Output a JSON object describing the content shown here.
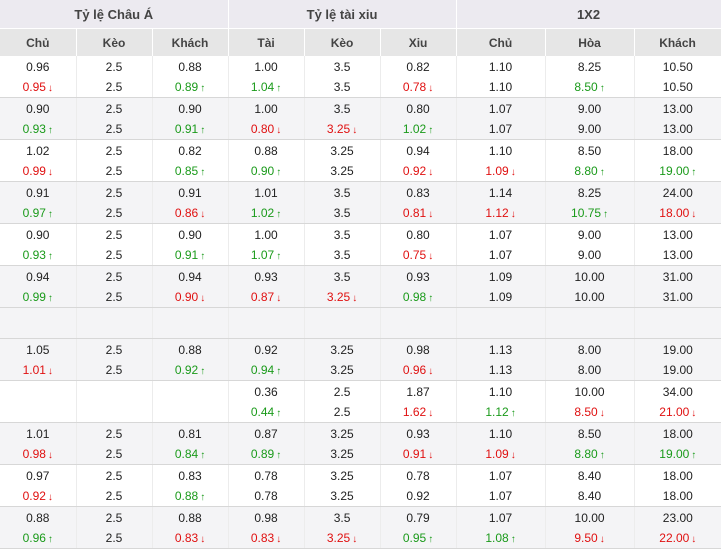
{
  "headers": {
    "groups": [
      "Tỷ lệ Châu Á",
      "Tỷ lệ tài xiu",
      "1X2"
    ],
    "columns": [
      "Chủ",
      "Kèo",
      "Khách",
      "Tài",
      "Kèo",
      "Xiu",
      "Chủ",
      "Hòa",
      "Khách"
    ]
  },
  "colors": {
    "down": "#e01010",
    "up": "#1a9a1a",
    "header_bg": "#e6e6e6"
  },
  "rows": [
    {
      "empty": false,
      "top": [
        "0.96",
        "2.5",
        "0.88",
        "1.00",
        "3.5",
        "0.82",
        "1.10",
        "8.25",
        "10.50"
      ],
      "bottom": [
        [
          "0.95",
          "down"
        ],
        [
          "2.5",
          ""
        ],
        [
          "0.89",
          "up"
        ],
        [
          "1.04",
          "up"
        ],
        [
          "3.5",
          ""
        ],
        [
          "0.78",
          "down"
        ],
        [
          "1.10",
          ""
        ],
        [
          "8.50",
          "up"
        ],
        [
          "10.50",
          ""
        ]
      ]
    },
    {
      "empty": false,
      "top": [
        "0.90",
        "2.5",
        "0.90",
        "1.00",
        "3.5",
        "0.80",
        "1.07",
        "9.00",
        "13.00"
      ],
      "bottom": [
        [
          "0.93",
          "up"
        ],
        [
          "2.5",
          ""
        ],
        [
          "0.91",
          "up"
        ],
        [
          "0.80",
          "down"
        ],
        [
          "3.25",
          "down"
        ],
        [
          "1.02",
          "up"
        ],
        [
          "1.07",
          ""
        ],
        [
          "9.00",
          ""
        ],
        [
          "13.00",
          ""
        ]
      ]
    },
    {
      "empty": false,
      "top": [
        "1.02",
        "2.5",
        "0.82",
        "0.88",
        "3.25",
        "0.94",
        "1.10",
        "8.50",
        "18.00"
      ],
      "bottom": [
        [
          "0.99",
          "down"
        ],
        [
          "2.5",
          ""
        ],
        [
          "0.85",
          "up"
        ],
        [
          "0.90",
          "up"
        ],
        [
          "3.25",
          ""
        ],
        [
          "0.92",
          "down"
        ],
        [
          "1.09",
          "down"
        ],
        [
          "8.80",
          "up"
        ],
        [
          "19.00",
          "up"
        ]
      ]
    },
    {
      "empty": false,
      "top": [
        "0.91",
        "2.5",
        "0.91",
        "1.01",
        "3.5",
        "0.83",
        "1.14",
        "8.25",
        "24.00"
      ],
      "bottom": [
        [
          "0.97",
          "up"
        ],
        [
          "2.5",
          ""
        ],
        [
          "0.86",
          "down"
        ],
        [
          "1.02",
          "up"
        ],
        [
          "3.5",
          ""
        ],
        [
          "0.81",
          "down"
        ],
        [
          "1.12",
          "down"
        ],
        [
          "10.75",
          "up"
        ],
        [
          "18.00",
          "down"
        ]
      ]
    },
    {
      "empty": false,
      "top": [
        "0.90",
        "2.5",
        "0.90",
        "1.00",
        "3.5",
        "0.80",
        "1.07",
        "9.00",
        "13.00"
      ],
      "bottom": [
        [
          "0.93",
          "up"
        ],
        [
          "2.5",
          ""
        ],
        [
          "0.91",
          "up"
        ],
        [
          "1.07",
          "up"
        ],
        [
          "3.5",
          ""
        ],
        [
          "0.75",
          "down"
        ],
        [
          "1.07",
          ""
        ],
        [
          "9.00",
          ""
        ],
        [
          "13.00",
          ""
        ]
      ]
    },
    {
      "empty": false,
      "top": [
        "0.94",
        "2.5",
        "0.94",
        "0.93",
        "3.5",
        "0.93",
        "1.09",
        "10.00",
        "31.00"
      ],
      "bottom": [
        [
          "0.99",
          "up"
        ],
        [
          "2.5",
          ""
        ],
        [
          "0.90",
          "down"
        ],
        [
          "0.87",
          "down"
        ],
        [
          "3.25",
          "down"
        ],
        [
          "0.98",
          "up"
        ],
        [
          "1.09",
          ""
        ],
        [
          "10.00",
          ""
        ],
        [
          "31.00",
          ""
        ]
      ]
    },
    {
      "empty": true
    },
    {
      "empty": false,
      "top": [
        "1.05",
        "2.5",
        "0.88",
        "0.92",
        "3.25",
        "0.98",
        "1.13",
        "8.00",
        "19.00"
      ],
      "bottom": [
        [
          "1.01",
          "down"
        ],
        [
          "2.5",
          ""
        ],
        [
          "0.92",
          "up"
        ],
        [
          "0.94",
          "up"
        ],
        [
          "3.25",
          ""
        ],
        [
          "0.96",
          "down"
        ],
        [
          "1.13",
          ""
        ],
        [
          "8.00",
          ""
        ],
        [
          "19.00",
          ""
        ]
      ]
    },
    {
      "empty": false,
      "top": [
        "",
        "",
        "",
        "0.36",
        "2.5",
        "1.87",
        "1.10",
        "10.00",
        "34.00"
      ],
      "bottom": [
        [
          "",
          ""
        ],
        [
          "",
          ""
        ],
        [
          "",
          ""
        ],
        [
          "0.44",
          "up"
        ],
        [
          "2.5",
          ""
        ],
        [
          "1.62",
          "down"
        ],
        [
          "1.12",
          "up"
        ],
        [
          "8.50",
          "down"
        ],
        [
          "21.00",
          "down"
        ]
      ]
    },
    {
      "empty": false,
      "top": [
        "1.01",
        "2.5",
        "0.81",
        "0.87",
        "3.25",
        "0.93",
        "1.10",
        "8.50",
        "18.00"
      ],
      "bottom": [
        [
          "0.98",
          "down"
        ],
        [
          "2.5",
          ""
        ],
        [
          "0.84",
          "up"
        ],
        [
          "0.89",
          "up"
        ],
        [
          "3.25",
          ""
        ],
        [
          "0.91",
          "down"
        ],
        [
          "1.09",
          "down"
        ],
        [
          "8.80",
          "up"
        ],
        [
          "19.00",
          "up"
        ]
      ]
    },
    {
      "empty": false,
      "top": [
        "0.97",
        "2.5",
        "0.83",
        "0.78",
        "3.25",
        "0.78",
        "1.07",
        "8.40",
        "18.00"
      ],
      "bottom": [
        [
          "0.92",
          "down"
        ],
        [
          "2.5",
          ""
        ],
        [
          "0.88",
          "up"
        ],
        [
          "0.78",
          ""
        ],
        [
          "3.25",
          ""
        ],
        [
          "0.92",
          ""
        ],
        [
          "1.07",
          ""
        ],
        [
          "8.40",
          ""
        ],
        [
          "18.00",
          ""
        ]
      ]
    },
    {
      "empty": false,
      "top": [
        "0.88",
        "2.5",
        "0.88",
        "0.98",
        "3.5",
        "0.79",
        "1.07",
        "10.00",
        "23.00"
      ],
      "bottom": [
        [
          "0.96",
          "up"
        ],
        [
          "2.5",
          ""
        ],
        [
          "0.83",
          "down"
        ],
        [
          "0.83",
          "down"
        ],
        [
          "3.25",
          "down"
        ],
        [
          "0.95",
          "up"
        ],
        [
          "1.08",
          "up"
        ],
        [
          "9.50",
          "down"
        ],
        [
          "22.00",
          "down"
        ]
      ]
    }
  ]
}
